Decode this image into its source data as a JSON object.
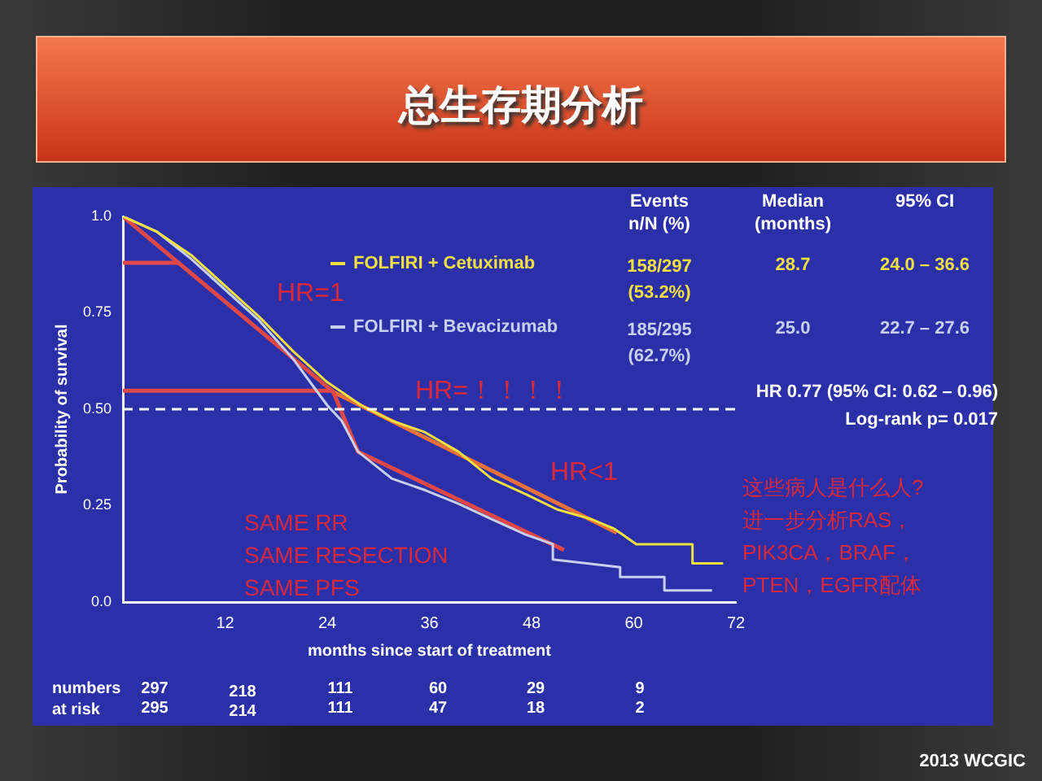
{
  "chart_data": {
    "type": "line",
    "title": "总生存期分析",
    "xlabel": "months since start of treatment",
    "ylabel": "Probability of survival",
    "xlim": [
      0,
      72
    ],
    "ylim": [
      0,
      1
    ],
    "xticks": [
      12,
      24,
      36,
      48,
      60,
      72
    ],
    "yticks": [
      {
        "value": 0,
        "label": "0.0"
      },
      0.25,
      {
        "value": 0.5,
        "label": "0.50"
      },
      0.75,
      {
        "value": 1,
        "label": "1.0"
      }
    ],
    "legend": "top right",
    "marker": "none",
    "line_style": "solid",
    "series": [
      {
        "name": "FOLFIRI + Cetuximab",
        "color": "#f0e040",
        "x": [
          0,
          4,
          8,
          12,
          16,
          20,
          24,
          28,
          31.6,
          35.5,
          39.4,
          43.3,
          47.3,
          51,
          55,
          57.7,
          60.3,
          66.9,
          66.9,
          70.5
        ],
        "values": [
          1,
          0.96,
          0.9,
          0.82,
          0.74,
          0.65,
          0.57,
          0.51,
          0.47,
          0.44,
          0.39,
          0.32,
          0.28,
          0.24,
          0.215,
          0.19,
          0.15,
          0.15,
          0.1,
          0.1
        ]
      },
      {
        "name": "FOLFIRI + Bevacizumab",
        "color": "#c8d0f0",
        "x": [
          0,
          4,
          8,
          12,
          16,
          20,
          24,
          25.7,
          27.6,
          31.6,
          35.5,
          39.4,
          43.3,
          47.3,
          50.5,
          50.5,
          54.5,
          58.4,
          58.4,
          63.6,
          63.6,
          69.2
        ],
        "values": [
          1,
          0.96,
          0.89,
          0.81,
          0.73,
          0.63,
          0.51,
          0.47,
          0.39,
          0.32,
          0.29,
          0.255,
          0.215,
          0.175,
          0.15,
          0.11,
          0.1,
          0.09,
          0.065,
          0.065,
          0.03,
          0.03
        ]
      },
      {
        "type": "line",
        "color": "#e04848",
        "x": [
          0,
          24.7
        ],
        "values": [
          1,
          0.545
        ]
      },
      {
        "type": "line",
        "color": "#e04848",
        "x": [
          0,
          6.7
        ],
        "values": [
          0.88,
          0.88
        ]
      },
      {
        "type": "line",
        "color": "#e04848",
        "x": [
          0,
          24.7
        ],
        "values": [
          0.548,
          0.548
        ]
      },
      {
        "type": "line",
        "color": "#e04848",
        "x": [
          24.7,
          27.6,
          51.8
        ],
        "values": [
          0.545,
          0.39,
          0.135
        ]
      },
      {
        "type": "line",
        "color": "#e8703a",
        "x": [
          24.7,
          58
        ],
        "values": [
          0.545,
          0.18
        ]
      }
    ],
    "ref_lines": [
      {
        "axis": "y",
        "value": 0.5,
        "color": "#ffffff",
        "line_style": "dashed"
      }
    ],
    "annotations": [
      "Events\nn/N (%)",
      "Median\n(months)",
      "95% CI",
      "158/297\n(53.2%)",
      "28.7",
      "24.0 – 36.6",
      "185/295\n(62.7%)",
      "25.0",
      "22.7 – 27.6",
      "HR 0.77 (95% CI: 0.62 – 0.96)",
      "Log-rank p= 0.017",
      "HR=1",
      "HR=！！！！",
      "HR<1",
      "SAME RR\nSAME RESECTION\nSAME PFS",
      "这些病人是什么人?\n进一步分析RAS，\nPIK3CA，BRAF，\nPTEN，EGFR配体",
      "numbers\nat risk",
      "297",
      "218",
      "111",
      "60",
      "29",
      "9",
      "295",
      "214",
      "111",
      "47",
      "18",
      "2",
      "2013 WCGIC"
    ]
  }
}
